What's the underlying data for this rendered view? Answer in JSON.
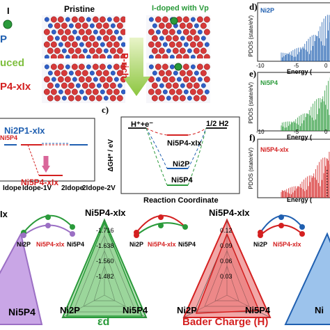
{
  "legend_a": {
    "atom_label": "I",
    "p_label": "P",
    "reduced_label": "uced",
    "formula": "P4-xIx"
  },
  "panel_a": {
    "pristine": "Pristine",
    "doped": "I-doped with Vp",
    "arrow_label": "P-rich"
  },
  "panel_b": {
    "series_top": "Ni2P1-xIx",
    "series_top_sub": "Ni5P4",
    "series_bottom": "Ni5P4-xIx",
    "x_ticks": [
      "Idope",
      "Idope-1V",
      "2Idope",
      "2Idope-2V"
    ]
  },
  "panel_c": {
    "letter": "c)",
    "left_label": "H⁺+e⁻",
    "right_label": "1/2 H2",
    "ylabel": "ΔGH* / eV",
    "xlabel": "Reaction Coordinate",
    "levels": [
      "Ni5P4-xIx",
      "Ni2P",
      "Ni5P4"
    ]
  },
  "panel_pdos": {
    "ylabel": "PDOS (state/eV)",
    "xlabel": "Energy (",
    "panels": [
      {
        "letter": "d)",
        "name": "Ni2P",
        "color": "#1f5fb0",
        "ticks": [
          "-10",
          "-5",
          "0"
        ]
      },
      {
        "letter": "e)",
        "name": "Ni5P4",
        "color": "#2a9a3a",
        "ticks": [
          "-10",
          "-5",
          "0"
        ]
      },
      {
        "letter": "f)",
        "name": "Ni5P4-xIx",
        "color": "#d42020",
        "ticks": [
          "-10",
          "-5",
          "0"
        ]
      }
    ]
  },
  "radar": {
    "left_partial_label": "Ix",
    "left_bottom_label": "Ni5P4",
    "center_title": "Ni5P4-xIx",
    "center_ticks": [
      "-1.716",
      "-1.638",
      "-1.560",
      "-1.482"
    ],
    "ed_left": "Ni2P",
    "ed_right": "Ni5P4",
    "ed_label": "εd",
    "bader_title": "Ni5P4-xIx",
    "bader_ticks": [
      "0.12",
      "0.09",
      "0.06",
      "0.03"
    ],
    "bader_left": "Ni2P",
    "bader_right": "Ni5P4",
    "bader_label": "Bader Charge (H)",
    "right_partial_label": "Ni"
  },
  "mini_plots": [
    {
      "ticks": [
        "Ni2P",
        "Ni5P4-xIx",
        "Ni5P4"
      ]
    },
    {
      "ticks": [
        "Ni2P",
        "Ni5P4-xIx",
        "Ni5P4"
      ]
    },
    {
      "ticks": [
        "Ni2P",
        "Ni5P4-xIx"
      ]
    }
  ],
  "colors": {
    "blue": "#1f5fb0",
    "green": "#2a9a3a",
    "red": "#d42020",
    "purple": "#9b6fc4"
  }
}
